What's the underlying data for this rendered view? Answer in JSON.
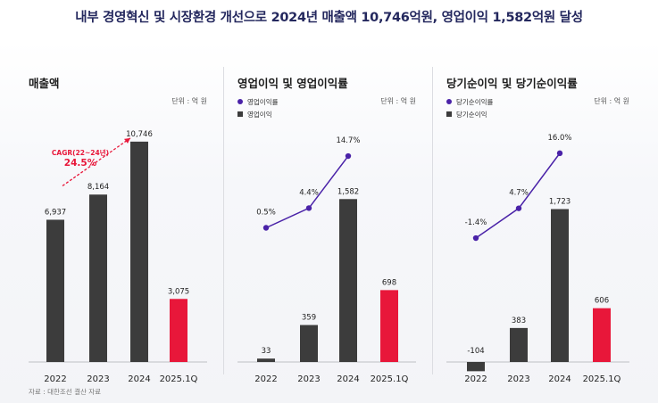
{
  "headline": "내부 경영혁신 및 시장환경 개선으로 2024년 매출액 10,746억원, 영업이익 1,582억원 달성",
  "source": "자료 : 대한조선 결산 자료",
  "colors": {
    "bar": "#3c3c3c",
    "highlight": "#e8173a",
    "line": "#4a22a8",
    "cagr": "#e8173a"
  },
  "chart_data": [
    {
      "type": "bar",
      "title": "매출액",
      "unit": "단위 : 억 원",
      "categories": [
        "2022",
        "2023",
        "2024",
        "2025.1Q"
      ],
      "values": [
        6937,
        8164,
        10746,
        3075
      ],
      "value_labels": [
        "6,937",
        "8,164",
        "10,746",
        "3,075"
      ],
      "highlight_index": 3,
      "ylim": [
        0,
        11000
      ],
      "annotation": {
        "label": "CAGR(22~24년)",
        "value": "24.5%"
      }
    },
    {
      "type": "bar+line",
      "title": "영업이익 및 영업이익률",
      "unit": "단위 : 억 원",
      "legend": [
        "영업이익률",
        "영업이익"
      ],
      "categories": [
        "2022",
        "2023",
        "2024",
        "2025.1Q"
      ],
      "values": [
        33,
        359,
        1582,
        698
      ],
      "value_labels": [
        "33",
        "359",
        "1,582",
        "698"
      ],
      "highlight_index": 3,
      "ylim": [
        0,
        2000
      ],
      "line_series": {
        "name": "영업이익률",
        "values": [
          0.5,
          4.4,
          14.7
        ],
        "labels": [
          "0.5%",
          "4.4%",
          "14.7%"
        ],
        "ylim": [
          -10,
          20
        ]
      }
    },
    {
      "type": "bar+line",
      "title": "당기순이익 및 당기순이익률",
      "unit": "단위 : 억 원",
      "legend": [
        "당기순이익률",
        "당기순이익"
      ],
      "categories": [
        "2022",
        "2023",
        "2024",
        "2025.1Q"
      ],
      "values": [
        -104,
        383,
        1723,
        606
      ],
      "value_labels": [
        "-104",
        "383",
        "1,723",
        "606"
      ],
      "highlight_index": 3,
      "ylim": [
        -200,
        2150
      ],
      "line_series": {
        "name": "당기순이익률",
        "values": [
          -1.4,
          4.7,
          16.0
        ],
        "labels": [
          "-1.4%",
          "4.7%",
          "16.0%"
        ],
        "ylim": [
          -12,
          20
        ]
      }
    }
  ]
}
